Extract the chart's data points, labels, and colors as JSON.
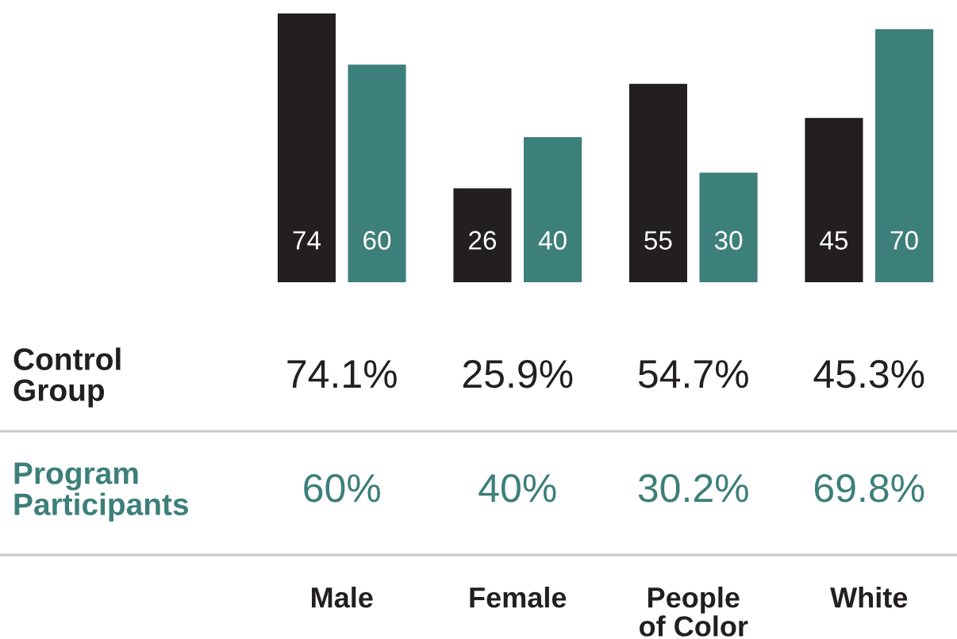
{
  "chart_data": {
    "type": "bar",
    "categories": [
      "Male",
      "Female",
      "People\nof Color",
      "White"
    ],
    "series": [
      {
        "name": "Control\nGroup",
        "color": "#231f20",
        "values": [
          74.1,
          25.9,
          54.7,
          45.3
        ],
        "value_labels": [
          "74",
          "26",
          "55",
          "45"
        ]
      },
      {
        "name": "Program\nParticipants",
        "color": "#3d7f7a",
        "values": [
          60,
          40,
          30.2,
          69.8
        ],
        "value_labels": [
          "60",
          "40",
          "30",
          "70"
        ]
      }
    ],
    "annotations": [
      "74.1%",
      "25.9%",
      "54.7%",
      "45.3%",
      "60%",
      "40%",
      "30.2%",
      "69.8%"
    ]
  }
}
